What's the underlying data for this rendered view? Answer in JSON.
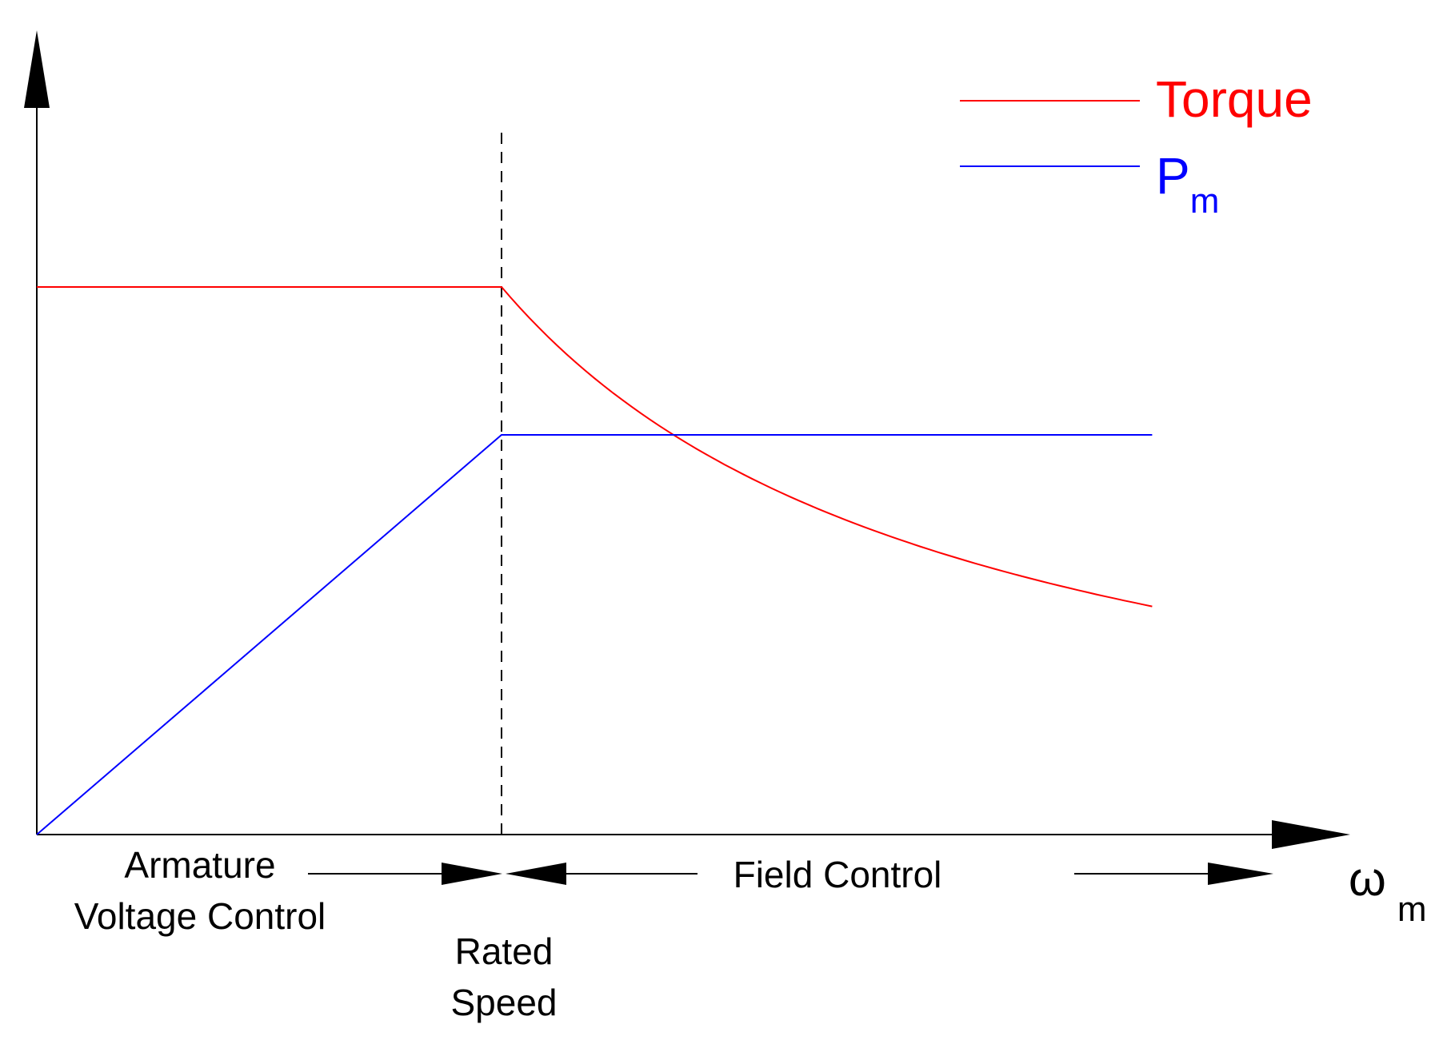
{
  "chart_data": {
    "type": "line",
    "title": "",
    "xlabel": "ω",
    "xlabel_sub": "m",
    "ylabel": "",
    "xlim": [
      0,
      2.8
    ],
    "ylim": [
      0,
      1.15
    ],
    "rated_speed": 1.0,
    "grid": false,
    "legend_position": "top-right",
    "series": [
      {
        "name": "Torque",
        "color": "#ff0000",
        "x": [
          0,
          0.2,
          0.4,
          0.6,
          0.8,
          1.0,
          1.2,
          1.4,
          1.6,
          1.8,
          2.0,
          2.2,
          2.4
        ],
        "y": [
          1.0,
          1.0,
          1.0,
          1.0,
          1.0,
          1.0,
          0.833,
          0.714,
          0.625,
          0.556,
          0.5,
          0.455,
          0.417
        ]
      },
      {
        "name": "P",
        "name_sub": "m",
        "color": "#0000ff",
        "x": [
          0,
          0.2,
          0.4,
          0.6,
          0.8,
          1.0,
          1.2,
          1.4,
          1.6,
          1.8,
          2.0,
          2.2,
          2.4
        ],
        "y": [
          0,
          0.146,
          0.292,
          0.438,
          0.584,
          0.73,
          0.73,
          0.73,
          0.73,
          0.73,
          0.73,
          0.73,
          0.73
        ]
      }
    ],
    "annotations": {
      "region_left": [
        "Armature",
        "Voltage Control"
      ],
      "region_right": "Field Control",
      "rated_speed_label": [
        "Rated",
        "Speed"
      ]
    }
  }
}
